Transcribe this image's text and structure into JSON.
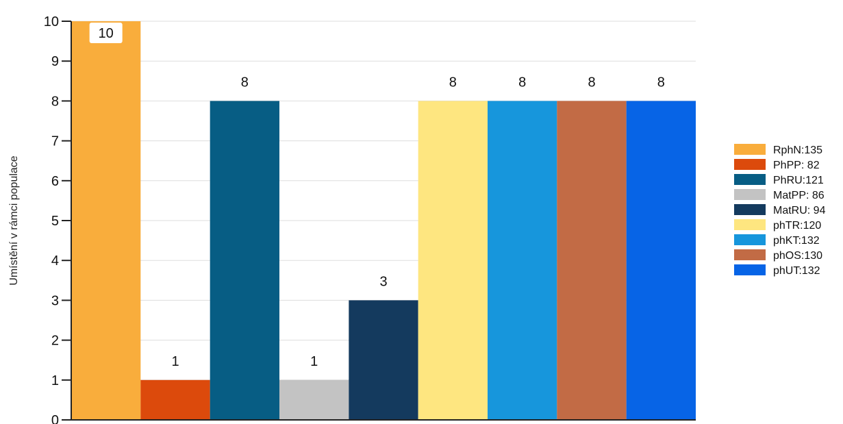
{
  "chart_data": {
    "type": "bar",
    "title": "",
    "xlabel": "",
    "ylabel": "Umístění v rámci populace",
    "ylim": [
      0,
      10
    ],
    "yticks": [
      0,
      1,
      2,
      3,
      4,
      5,
      6,
      7,
      8,
      9,
      10
    ],
    "grid": true,
    "legend_position": "right",
    "categories": [
      "RphN:135",
      "PhPP: 82",
      "PhRU:121",
      "MatPP: 86",
      "MatRU: 94",
      "phTR:120",
      "phKT:132",
      "phOS:130",
      "phUT:132"
    ],
    "values": [
      10,
      1,
      8,
      1,
      3,
      8,
      8,
      8,
      8
    ],
    "colors": [
      "#F9AD3C",
      "#DC4A0C",
      "#075D84",
      "#C3C3C3",
      "#143A5E",
      "#FEE680",
      "#1796DC",
      "#C26B45",
      "#0764E6"
    ]
  }
}
